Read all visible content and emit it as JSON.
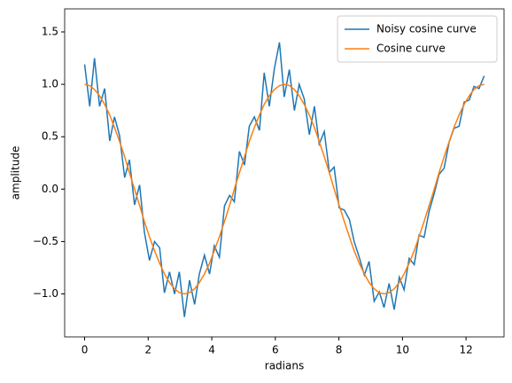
{
  "chart_data": {
    "type": "line",
    "xlabel": "radians",
    "ylabel": "amplitude",
    "x": [
      0,
      0.16,
      0.31,
      0.47,
      0.63,
      0.79,
      0.94,
      1.1,
      1.26,
      1.41,
      1.57,
      1.73,
      1.88,
      2.04,
      2.2,
      2.36,
      2.51,
      2.67,
      2.83,
      2.98,
      3.14,
      3.3,
      3.46,
      3.61,
      3.77,
      3.93,
      4.08,
      4.24,
      4.4,
      4.56,
      4.71,
      4.87,
      5.03,
      5.18,
      5.34,
      5.5,
      5.65,
      5.81,
      5.97,
      6.13,
      6.28,
      6.44,
      6.6,
      6.75,
      6.91,
      7.07,
      7.23,
      7.38,
      7.54,
      7.7,
      7.85,
      8.01,
      8.17,
      8.33,
      8.48,
      8.64,
      8.8,
      8.95,
      9.11,
      9.27,
      9.42,
      9.58,
      9.74,
      9.9,
      10.05,
      10.21,
      10.37,
      10.52,
      10.68,
      10.84,
      11.0,
      11.15,
      11.31,
      11.47,
      11.62,
      11.78,
      11.94,
      12.1,
      12.25,
      12.41,
      12.57
    ],
    "series": [
      {
        "name": "Noisy cosine curve",
        "color": "#1f77b4",
        "values": [
          1.19,
          0.79,
          1.25,
          0.79,
          0.96,
          0.46,
          0.69,
          0.51,
          0.11,
          0.28,
          -0.15,
          0.04,
          -0.41,
          -0.68,
          -0.5,
          -0.56,
          -0.99,
          -0.79,
          -1.0,
          -0.79,
          -1.22,
          -0.87,
          -1.1,
          -0.81,
          -0.63,
          -0.81,
          -0.54,
          -0.65,
          -0.16,
          -0.06,
          -0.12,
          0.36,
          0.23,
          0.6,
          0.69,
          0.56,
          1.11,
          0.79,
          1.15,
          1.4,
          0.88,
          1.14,
          0.75,
          1.0,
          0.86,
          0.52,
          0.79,
          0.43,
          0.55,
          0.16,
          0.21,
          -0.18,
          -0.2,
          -0.29,
          -0.5,
          -0.65,
          -0.82,
          -0.69,
          -1.07,
          -0.98,
          -1.13,
          -0.9,
          -1.15,
          -0.84,
          -0.96,
          -0.66,
          -0.72,
          -0.44,
          -0.46,
          -0.21,
          -0.04,
          0.14,
          0.2,
          0.45,
          0.58,
          0.6,
          0.83,
          0.85,
          0.98,
          0.96,
          1.08
        ]
      },
      {
        "name": "Cosine curve",
        "color": "#ff7f0e",
        "values": [
          1,
          0.988,
          0.951,
          0.891,
          0.809,
          0.707,
          0.588,
          0.454,
          0.309,
          0.156,
          0,
          -0.156,
          -0.309,
          -0.454,
          -0.588,
          -0.707,
          -0.809,
          -0.891,
          -0.951,
          -0.988,
          -1,
          -0.988,
          -0.951,
          -0.891,
          -0.809,
          -0.707,
          -0.588,
          -0.454,
          -0.309,
          -0.156,
          0,
          0.156,
          0.309,
          0.454,
          0.588,
          0.707,
          0.809,
          0.891,
          0.951,
          0.988,
          1,
          0.988,
          0.951,
          0.891,
          0.809,
          0.707,
          0.588,
          0.454,
          0.309,
          0.156,
          0,
          -0.156,
          -0.309,
          -0.454,
          -0.588,
          -0.707,
          -0.809,
          -0.891,
          -0.951,
          -0.988,
          -1,
          -0.988,
          -0.951,
          -0.891,
          -0.809,
          -0.707,
          -0.588,
          -0.454,
          -0.309,
          -0.156,
          0,
          0.156,
          0.309,
          0.454,
          0.588,
          0.707,
          0.809,
          0.891,
          0.951,
          0.988,
          1
        ]
      }
    ],
    "xlim": [
      -0.628,
      13.195
    ],
    "xticks": [
      0,
      2,
      4,
      6,
      8,
      10,
      12
    ],
    "ylim": [
      -1.41,
      1.72
    ],
    "yticks": [
      {
        "value": -1,
        "label": "−1.0"
      },
      {
        "value": -0.5,
        "label": "−0.5"
      },
      {
        "value": 0,
        "label": "0.0"
      },
      {
        "value": 0.5,
        "label": "0.5"
      },
      {
        "value": 1,
        "label": "1.0"
      },
      {
        "value": 1.5,
        "label": "1.5"
      }
    ],
    "grid": false,
    "legend": "upper right"
  }
}
